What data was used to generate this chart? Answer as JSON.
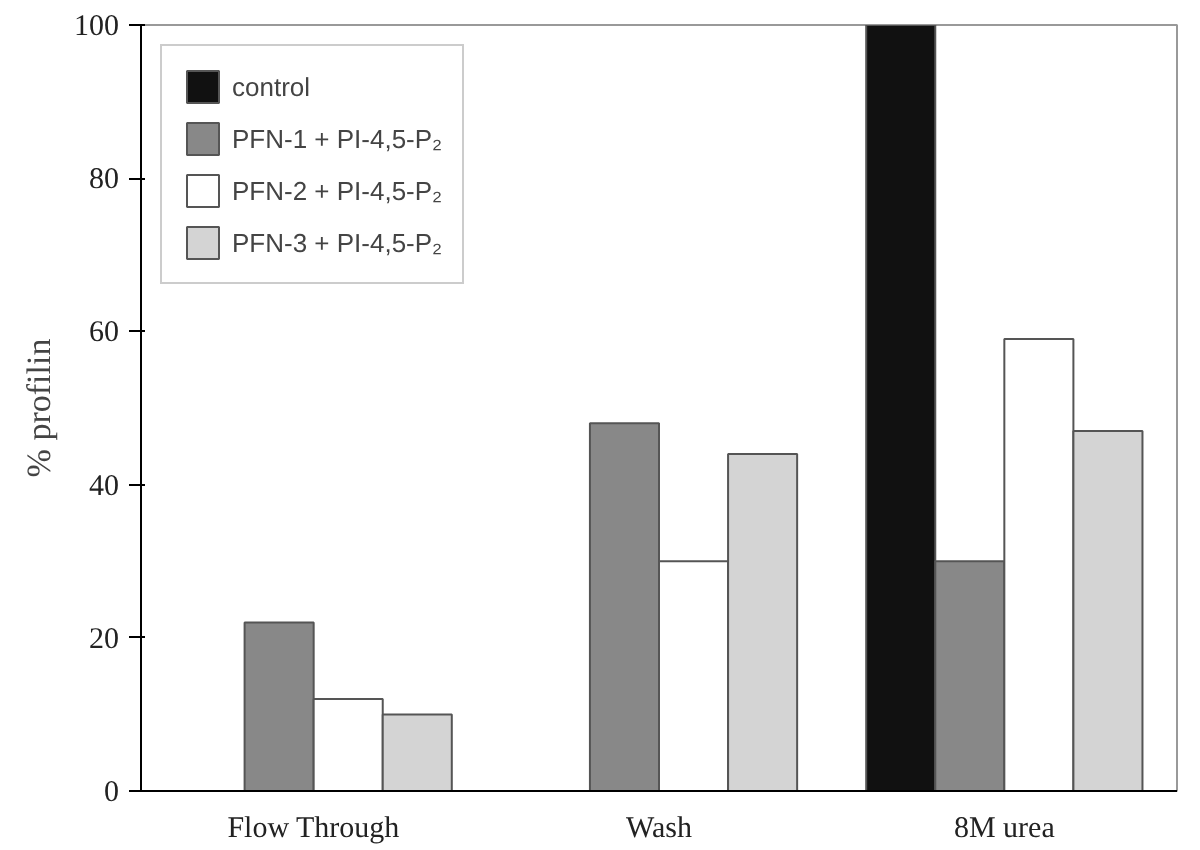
{
  "chart_data": {
    "type": "bar",
    "ylabel": "% profilin",
    "categories": [
      "Flow Through",
      "Wash",
      "8M urea"
    ],
    "series": [
      {
        "name": "control",
        "color": "#111111",
        "values": [
          null,
          null,
          100
        ]
      },
      {
        "name": "PFN-1 + PI-4,5-P₂",
        "color": "#888888",
        "values": [
          22,
          48,
          30
        ]
      },
      {
        "name": "PFN-2 + PI-4,5-P₂",
        "color": "#ffffff",
        "values": [
          12,
          30,
          59
        ]
      },
      {
        "name": "PFN-3 + PI-4,5-P₂",
        "color": "#d4d4d4",
        "values": [
          10,
          44,
          47
        ]
      }
    ],
    "ylim": [
      0,
      100
    ],
    "yticks": [
      0,
      20,
      40,
      60,
      80,
      100
    ],
    "grid": false,
    "legend": "top left"
  }
}
